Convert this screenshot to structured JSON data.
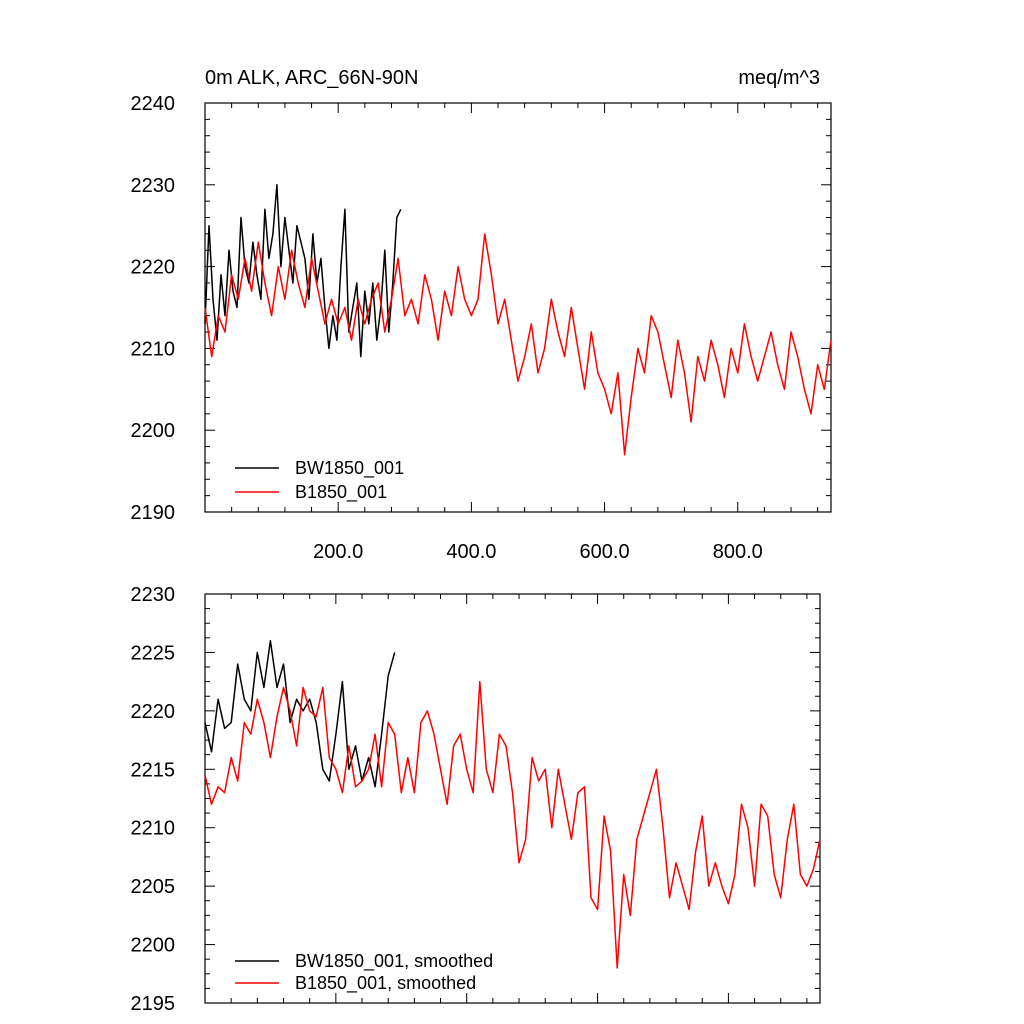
{
  "chart_data": [
    {
      "type": "line",
      "title_left": "0m ALK, ARC_66N-90N",
      "title_right": "meq/m^3",
      "xlim": [
        0,
        940
      ],
      "ylim": [
        2190,
        2240
      ],
      "yticks": [
        2190,
        2200,
        2210,
        2220,
        2230,
        2240
      ],
      "ytick_labels": [
        "2190",
        "2200",
        "2210",
        "2220",
        "2230",
        "2240"
      ],
      "xticks": [
        200,
        400,
        600,
        800
      ],
      "xtick_labels": [
        "200.0",
        "400.0",
        "600.0",
        "800.0"
      ],
      "legend": [
        "BW1850_001",
        "B1850_001"
      ],
      "series": [
        {
          "name": "BW1850_001",
          "color": "#000000",
          "x": [
            0,
            6,
            12,
            18,
            24,
            30,
            36,
            42,
            48,
            54,
            60,
            66,
            72,
            78,
            84,
            90,
            96,
            102,
            108,
            114,
            120,
            126,
            132,
            138,
            144,
            150,
            156,
            162,
            168,
            174,
            180,
            186,
            192,
            198,
            204,
            210,
            216,
            222,
            228,
            234,
            240,
            246,
            252,
            258,
            264,
            270,
            276,
            282,
            288,
            294
          ],
          "values": [
            2213,
            2225,
            2216,
            2211,
            2219,
            2214,
            2222,
            2217,
            2215,
            2226,
            2220,
            2218,
            2223,
            2219,
            2216,
            2227,
            2221,
            2224,
            2230,
            2220,
            2226,
            2222,
            2218,
            2225,
            2223,
            2221,
            2216,
            2224,
            2218,
            2221,
            2215,
            2210,
            2214,
            2211,
            2220,
            2227,
            2212,
            2215,
            2218,
            2209,
            2217,
            2213,
            2218,
            2211,
            2215,
            2222,
            2212,
            2218,
            2226,
            2227
          ]
        },
        {
          "name": "B1850_001",
          "color": "#ff0000",
          "x": [
            0,
            10,
            20,
            30,
            40,
            50,
            60,
            70,
            80,
            90,
            100,
            110,
            120,
            130,
            140,
            150,
            160,
            170,
            180,
            190,
            200,
            210,
            220,
            230,
            240,
            250,
            260,
            270,
            280,
            290,
            300,
            310,
            320,
            330,
            340,
            350,
            360,
            370,
            380,
            390,
            400,
            410,
            420,
            430,
            440,
            450,
            460,
            470,
            480,
            490,
            500,
            510,
            520,
            530,
            540,
            550,
            560,
            570,
            580,
            590,
            600,
            610,
            620,
            630,
            640,
            650,
            660,
            670,
            680,
            690,
            700,
            710,
            720,
            730,
            740,
            750,
            760,
            770,
            780,
            790,
            800,
            810,
            820,
            830,
            840,
            850,
            860,
            870,
            880,
            890,
            900,
            910,
            920,
            930,
            940
          ],
          "values": [
            2215,
            2209,
            2214,
            2212,
            2219,
            2216,
            2221,
            2217,
            2223,
            2218,
            2214,
            2220,
            2216,
            2222,
            2218,
            2215,
            2221,
            2217,
            2213,
            2216,
            2213,
            2215,
            2211,
            2216,
            2213,
            2216,
            2218,
            2212,
            2216,
            2221,
            2214,
            2216,
            2213,
            2219,
            2216,
            2211,
            2217,
            2214,
            2220,
            2216,
            2214,
            2216,
            2224,
            2219,
            2213,
            2216,
            2211,
            2206,
            2209,
            2213,
            2207,
            2210,
            2216,
            2212,
            2209,
            2215,
            2210,
            2205,
            2212,
            2207,
            2205,
            2202,
            2207,
            2197,
            2204,
            2210,
            2207,
            2214,
            2212,
            2208,
            2204,
            2211,
            2207,
            2201,
            2209,
            2206,
            2211,
            2208,
            2204,
            2210,
            2207,
            2213,
            2209,
            2206,
            2209,
            2212,
            2208,
            2205,
            2212,
            2209,
            2205,
            2202,
            2208,
            2205,
            2211
          ]
        }
      ]
    },
    {
      "type": "line",
      "xlim": [
        0,
        940
      ],
      "ylim": [
        2195,
        2230
      ],
      "yticks": [
        2195,
        2200,
        2205,
        2210,
        2215,
        2220,
        2225,
        2230
      ],
      "ytick_labels": [
        "2195",
        "2200",
        "2205",
        "2210",
        "2215",
        "2220",
        "2225",
        "2230"
      ],
      "xticks": [
        200,
        400,
        600,
        800
      ],
      "legend": [
        "BW1850_001, smoothed",
        "B1850_001, smoothed"
      ],
      "series": [
        {
          "name": "BW1850_001, smoothed",
          "color": "#000000",
          "x": [
            0,
            10,
            20,
            30,
            40,
            50,
            60,
            70,
            80,
            90,
            100,
            110,
            120,
            130,
            140,
            150,
            160,
            170,
            180,
            190,
            200,
            210,
            220,
            230,
            240,
            250,
            260,
            270,
            280,
            290
          ],
          "values": [
            2219,
            2216.5,
            2221,
            2218.5,
            2219,
            2224,
            2221,
            2220,
            2225,
            2222,
            2226,
            2222,
            2224,
            2219,
            2221,
            2220,
            2221,
            2219,
            2215,
            2214,
            2218,
            2222.5,
            2215,
            2217,
            2214,
            2216,
            2213.5,
            2218,
            2223,
            2225
          ]
        },
        {
          "name": "B1850_001, smoothed",
          "color": "#ff0000",
          "x": [
            0,
            10,
            20,
            30,
            40,
            50,
            60,
            70,
            80,
            90,
            100,
            110,
            120,
            130,
            140,
            150,
            160,
            170,
            180,
            190,
            200,
            210,
            220,
            230,
            240,
            250,
            260,
            270,
            280,
            290,
            300,
            310,
            320,
            330,
            340,
            350,
            360,
            370,
            380,
            390,
            400,
            410,
            420,
            430,
            440,
            450,
            460,
            470,
            480,
            490,
            500,
            510,
            520,
            530,
            540,
            550,
            560,
            570,
            580,
            590,
            600,
            610,
            620,
            630,
            640,
            650,
            660,
            670,
            680,
            690,
            700,
            710,
            720,
            730,
            740,
            750,
            760,
            770,
            780,
            790,
            800,
            810,
            820,
            830,
            840,
            850,
            860,
            870,
            880,
            890,
            900,
            910,
            920,
            930,
            940
          ],
          "values": [
            2214.5,
            2212,
            2213.5,
            2213,
            2216,
            2214,
            2219,
            2218,
            2221,
            2219,
            2216,
            2219.5,
            2222,
            2220,
            2217,
            2222,
            2220,
            2219.5,
            2222,
            2216,
            2215,
            2213,
            2217,
            2213.5,
            2214,
            2215,
            2218,
            2213.5,
            2219,
            2218,
            2213,
            2216,
            2213,
            2219,
            2220,
            2218,
            2215,
            2212,
            2217,
            2218,
            2215,
            2213,
            2222.5,
            2215,
            2213,
            2218,
            2217,
            2213,
            2207,
            2209,
            2216,
            2214,
            2215,
            2210,
            2215,
            2212,
            2209,
            2213,
            2213.5,
            2204,
            2203,
            2211,
            2208,
            2198,
            2206,
            2202.5,
            2209,
            2211,
            2213,
            2215,
            2210,
            2204,
            2207,
            2205,
            2203,
            2208,
            2211,
            2205,
            2207,
            2205,
            2203.5,
            2206,
            2212,
            2210,
            2205,
            2212,
            2211,
            2206,
            2204,
            2209,
            2212,
            2206,
            2205,
            2206.5,
            2209
          ]
        }
      ]
    }
  ]
}
